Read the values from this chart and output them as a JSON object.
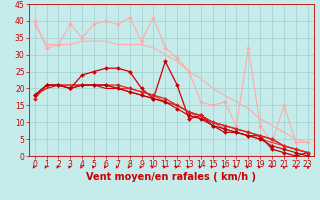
{
  "xlabel": "Vent moyen/en rafales ( km/h )",
  "xlim": [
    -0.5,
    23.5
  ],
  "ylim": [
    0,
    45
  ],
  "yticks": [
    0,
    5,
    10,
    15,
    20,
    25,
    30,
    35,
    40,
    45
  ],
  "xticks": [
    0,
    1,
    2,
    3,
    4,
    5,
    6,
    7,
    8,
    9,
    10,
    11,
    12,
    13,
    14,
    15,
    16,
    17,
    18,
    19,
    20,
    21,
    22,
    23
  ],
  "background_color": "#c5eceb",
  "grid_color": "#a0d0cf",
  "lines": [
    {
      "x": [
        0,
        1,
        2,
        3,
        4,
        5,
        6,
        7,
        8,
        9,
        10,
        11,
        12,
        13,
        14,
        15,
        16,
        17,
        18,
        19,
        20,
        21,
        22,
        23
      ],
      "y": [
        40,
        32,
        33,
        39,
        35,
        39,
        40,
        39,
        41,
        34,
        41,
        32,
        29,
        25,
        16,
        15,
        16,
        9,
        32,
        9,
        4,
        15,
        4,
        4
      ],
      "color": "#ffaaaa",
      "marker": "D",
      "markersize": 2,
      "linewidth": 0.8,
      "zorder": 2
    },
    {
      "x": [
        0,
        1,
        2,
        3,
        4,
        5,
        6,
        7,
        8,
        9,
        10,
        11,
        12,
        13,
        14,
        15,
        16,
        17,
        18,
        19,
        20,
        21,
        22,
        23
      ],
      "y": [
        39,
        33,
        33,
        33,
        34,
        34,
        34,
        33,
        33,
        33,
        32,
        30,
        28,
        25,
        23,
        20,
        18,
        16,
        14,
        11,
        9,
        7,
        5,
        4
      ],
      "color": "#ffaaaa",
      "marker": null,
      "linewidth": 0.8,
      "zorder": 2
    },
    {
      "x": [
        0,
        1,
        2,
        3,
        4,
        5,
        6,
        7,
        8,
        9,
        10,
        11,
        12,
        13,
        14,
        15,
        16,
        17,
        18,
        19,
        20,
        21,
        22,
        23
      ],
      "y": [
        18,
        21,
        21,
        20,
        24,
        25,
        26,
        26,
        25,
        20,
        17,
        28,
        21,
        11,
        12,
        9,
        7,
        7,
        6,
        6,
        2,
        1,
        0,
        1
      ],
      "color": "#cc0000",
      "marker": "D",
      "markersize": 2,
      "linewidth": 0.9,
      "zorder": 4
    },
    {
      "x": [
        0,
        1,
        2,
        3,
        4,
        5,
        6,
        7,
        8,
        9,
        10,
        11,
        12,
        13,
        14,
        15,
        16,
        17,
        18,
        19,
        20,
        21,
        22,
        23
      ],
      "y": [
        18,
        20,
        21,
        21,
        21,
        21,
        20,
        20,
        19,
        18,
        17,
        16,
        15,
        13,
        12,
        10,
        9,
        8,
        7,
        6,
        5,
        3,
        2,
        1
      ],
      "color": "#cc0000",
      "marker": null,
      "linewidth": 0.8,
      "zorder": 3
    },
    {
      "x": [
        0,
        1,
        2,
        3,
        4,
        5,
        6,
        7,
        8,
        9,
        10,
        11,
        12,
        13,
        14,
        15,
        16,
        17,
        18,
        19,
        20,
        21,
        22,
        23
      ],
      "y": [
        17,
        21,
        21,
        20,
        21,
        21,
        21,
        21,
        20,
        19,
        18,
        17,
        15,
        13,
        12,
        10,
        9,
        8,
        7,
        6,
        5,
        3,
        2,
        1
      ],
      "color": "#dd2222",
      "marker": "D",
      "markersize": 2,
      "linewidth": 0.9,
      "zorder": 4
    },
    {
      "x": [
        0,
        1,
        2,
        3,
        4,
        5,
        6,
        7,
        8,
        9,
        10,
        11,
        12,
        13,
        14,
        15,
        16,
        17,
        18,
        19,
        20,
        21,
        22,
        23
      ],
      "y": [
        17,
        21,
        21,
        21,
        21,
        21,
        21,
        20,
        20,
        19,
        18,
        16,
        15,
        13,
        11,
        10,
        8,
        7,
        6,
        5,
        4,
        3,
        2,
        1
      ],
      "color": "#ee3333",
      "marker": null,
      "linewidth": 0.8,
      "zorder": 3
    },
    {
      "x": [
        0,
        1,
        2,
        3,
        4,
        5,
        6,
        7,
        8,
        9,
        10,
        11,
        12,
        13,
        14,
        15,
        16,
        17,
        18,
        19,
        20,
        21,
        22,
        23
      ],
      "y": [
        18,
        21,
        21,
        20,
        21,
        21,
        21,
        20,
        19,
        18,
        17,
        16,
        14,
        12,
        11,
        9,
        8,
        7,
        6,
        5,
        3,
        2,
        1,
        0
      ],
      "color": "#bb0000",
      "marker": "D",
      "markersize": 2,
      "linewidth": 0.8,
      "zorder": 4
    }
  ],
  "arrow_color": "#cc0000",
  "xlabel_color": "#cc0000",
  "xlabel_fontsize": 7,
  "tick_color": "#cc0000",
  "tick_fontsize": 5.5
}
